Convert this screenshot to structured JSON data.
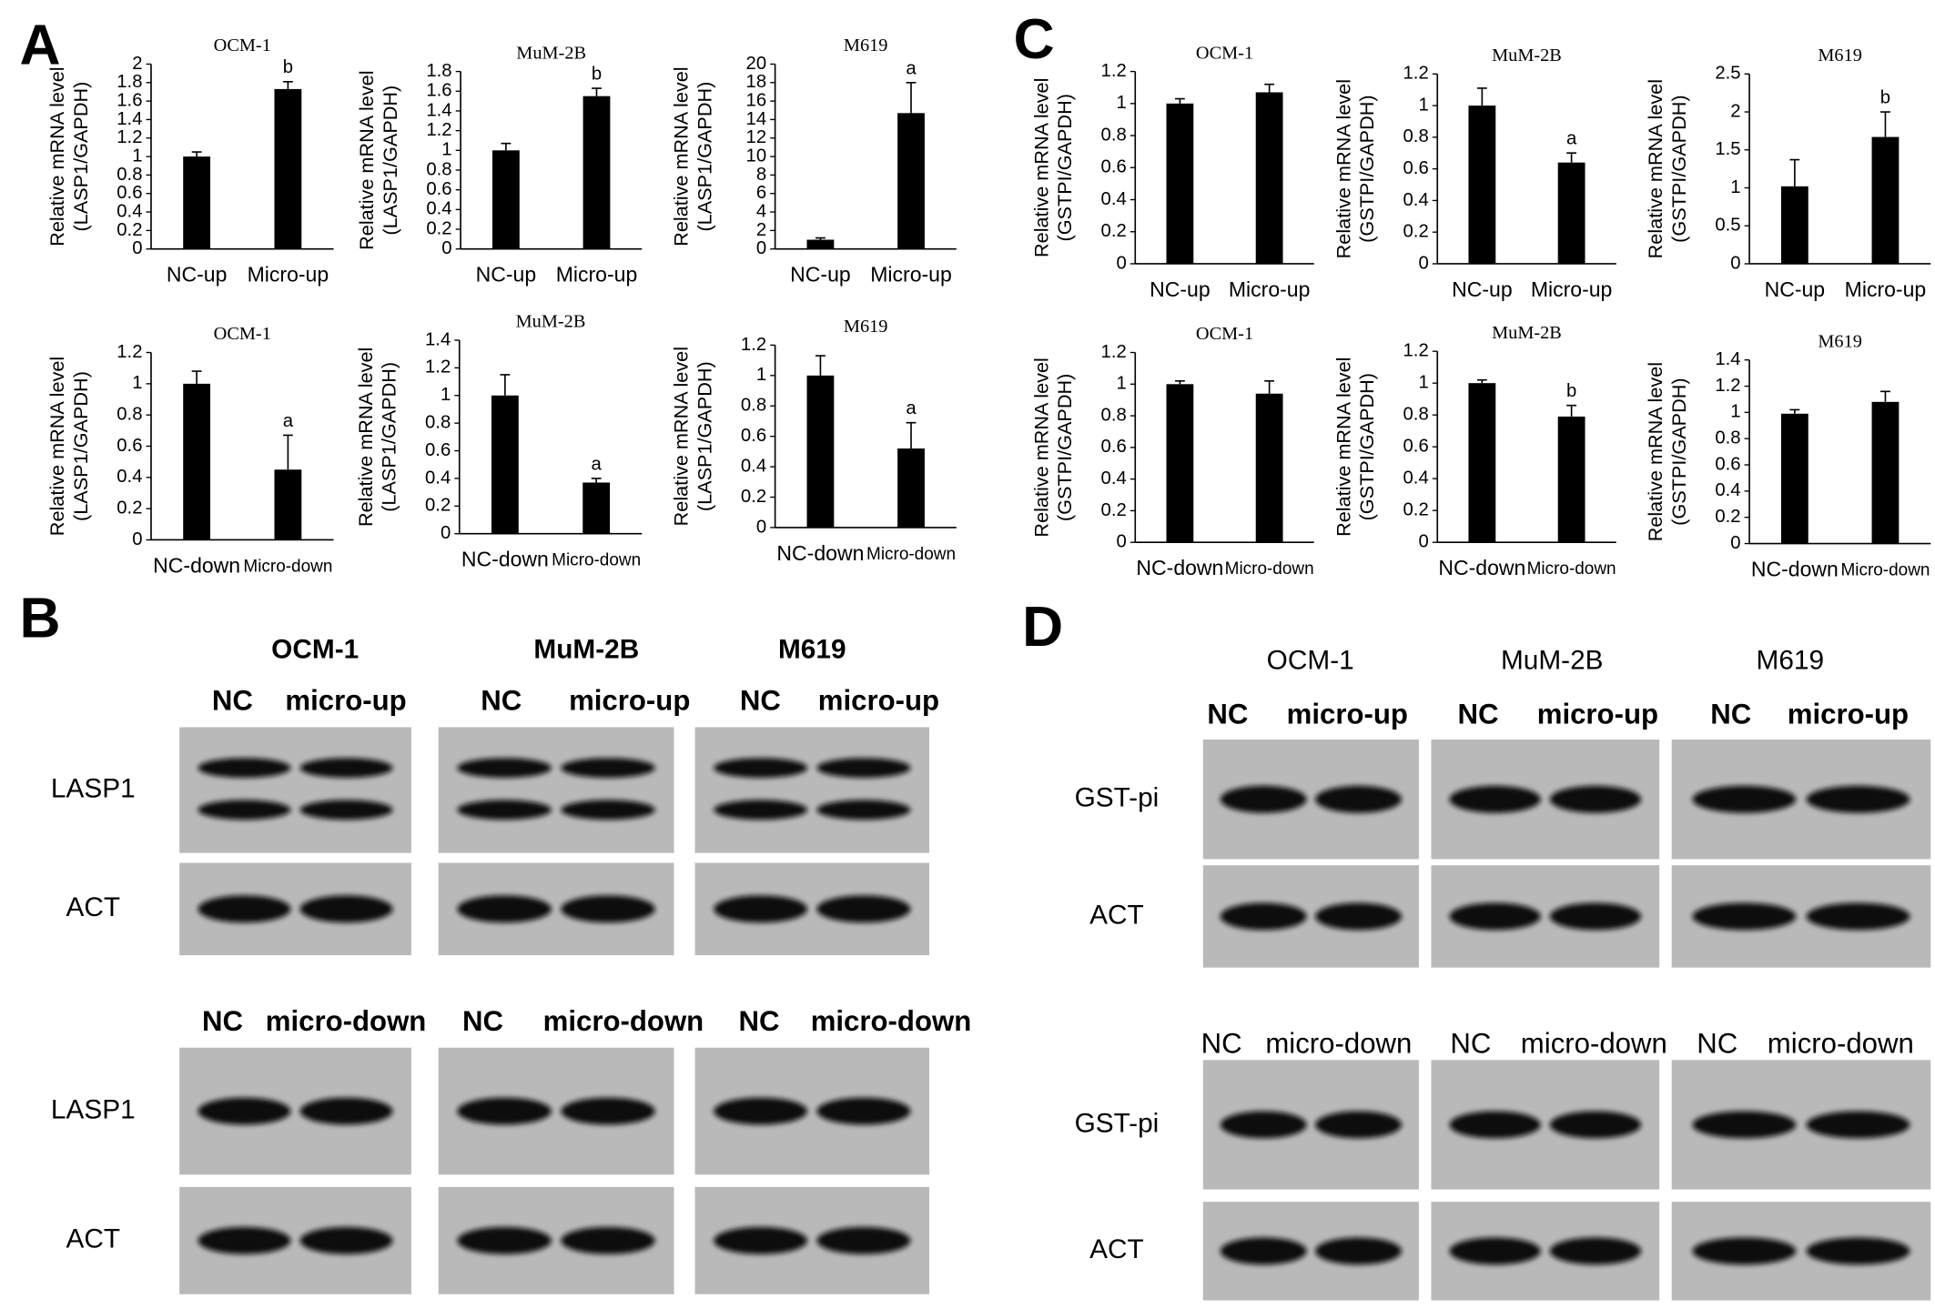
{
  "panel_letters": [
    "A",
    "B",
    "C",
    "D"
  ],
  "chart_data": [
    {
      "type": "bar",
      "title": "OCM-1",
      "ylabel": [
        "Relative mRNA level",
        "(LASP1/GAPDH)"
      ],
      "categories": [
        "NC-up",
        "Micro-up"
      ],
      "values": [
        1.0,
        1.73
      ],
      "errors": [
        0.05,
        0.08
      ],
      "significance": [
        null,
        "b"
      ],
      "color": "#000000",
      "ylim": [
        0,
        2
      ],
      "yticks": [
        0,
        0.2,
        0.4,
        0.6,
        0.8,
        1,
        1.2,
        1.4,
        1.6,
        1.8,
        2
      ]
    },
    {
      "type": "bar",
      "title": "MuM-2B",
      "ylabel": [
        "Relative mRNA level",
        "(LASP1/GAPDH)"
      ],
      "categories": [
        "NC-up",
        "Micro-up"
      ],
      "values": [
        1.0,
        1.55
      ],
      "errors": [
        0.07,
        0.08
      ],
      "significance": [
        null,
        "b"
      ],
      "color": "#000000",
      "ylim": [
        0,
        1.8
      ],
      "yticks": [
        0,
        0.2,
        0.4,
        0.6,
        0.8,
        1,
        1.2,
        1.4,
        1.6,
        1.8
      ]
    },
    {
      "type": "bar",
      "title": "M619",
      "ylabel": [
        "Relative mRNA level",
        "(LASP1/GAPDH)"
      ],
      "categories": [
        "NC-up",
        "Micro-up"
      ],
      "values": [
        1.0,
        14.7
      ],
      "errors": [
        0.2,
        3.3
      ],
      "significance": [
        null,
        "a"
      ],
      "color": "#000000",
      "ylim": [
        0,
        20
      ],
      "yticks": [
        0,
        2,
        4,
        6,
        8,
        10,
        12,
        14,
        16,
        18,
        20
      ]
    },
    {
      "type": "bar",
      "title": "OCM-1",
      "ylabel": [
        "Relative mRNA level",
        "(LASP1/GAPDH)"
      ],
      "categories": [
        "NC-down",
        "Micro-down"
      ],
      "values": [
        1.0,
        0.45
      ],
      "errors": [
        0.08,
        0.22
      ],
      "significance": [
        null,
        "a"
      ],
      "color": "#000000",
      "ylim": [
        0,
        1.2
      ],
      "yticks": [
        0,
        0.2,
        0.4,
        0.6,
        0.8,
        1,
        1.2
      ]
    },
    {
      "type": "bar",
      "title": "MuM-2B",
      "ylabel": [
        "Relative mRNA level",
        "(LASP1/GAPDH)"
      ],
      "categories": [
        "NC-down",
        "Micro-down"
      ],
      "values": [
        1.0,
        0.37
      ],
      "errors": [
        0.15,
        0.03
      ],
      "significance": [
        null,
        "a"
      ],
      "color": "#000000",
      "ylim": [
        0,
        1.4
      ],
      "yticks": [
        0,
        0.2,
        0.4,
        0.6,
        0.8,
        1,
        1.2,
        1.4
      ]
    },
    {
      "type": "bar",
      "title": "M619",
      "ylabel": [
        "Relative mRNA level",
        "(LASP1/GAPDH)"
      ],
      "categories": [
        "NC-down",
        "Micro-down"
      ],
      "values": [
        1.0,
        0.52
      ],
      "errors": [
        0.13,
        0.17
      ],
      "significance": [
        null,
        "a"
      ],
      "color": "#000000",
      "ylim": [
        0,
        1.2
      ],
      "yticks": [
        0,
        0.2,
        0.4,
        0.6,
        0.8,
        1,
        1.2
      ]
    },
    {
      "type": "bar",
      "title": "OCM-1",
      "ylabel": [
        "Relative mRNA level",
        "(GSTPI/GAPDH)"
      ],
      "categories": [
        "NC-up",
        "Micro-up"
      ],
      "values": [
        1.0,
        1.07
      ],
      "errors": [
        0.03,
        0.05
      ],
      "significance": [
        null,
        null
      ],
      "color": "#000000",
      "ylim": [
        0,
        1.2
      ],
      "yticks": [
        0,
        0.2,
        0.4,
        0.6,
        0.8,
        1,
        1.2
      ]
    },
    {
      "type": "bar",
      "title": "MuM-2B",
      "ylabel": [
        "Relative mRNA level",
        "(GSTPI/GAPDH)"
      ],
      "categories": [
        "NC-up",
        "Micro-up"
      ],
      "values": [
        1.0,
        0.64
      ],
      "errors": [
        0.11,
        0.06
      ],
      "significance": [
        null,
        "a"
      ],
      "color": "#000000",
      "ylim": [
        0,
        1.2
      ],
      "yticks": [
        0,
        0.2,
        0.4,
        0.6,
        0.8,
        1,
        1.2
      ]
    },
    {
      "type": "bar",
      "title": "M619",
      "ylabel": [
        "Relative mRNA level",
        "(GSTPI/GAPDH)"
      ],
      "categories": [
        "NC-up",
        "Micro-up"
      ],
      "values": [
        1.02,
        1.67
      ],
      "errors": [
        0.35,
        0.33
      ],
      "significance": [
        null,
        "b"
      ],
      "color": "#000000",
      "ylim": [
        0,
        2.5
      ],
      "yticks": [
        0,
        0.5,
        1,
        1.5,
        2,
        2.5
      ]
    },
    {
      "type": "bar",
      "title": "OCM-1",
      "ylabel": [
        "Relative mRNA level",
        "(GSTPI/GAPDH)"
      ],
      "categories": [
        "NC-down",
        "Micro-down"
      ],
      "values": [
        1.0,
        0.94
      ],
      "errors": [
        0.02,
        0.08
      ],
      "significance": [
        null,
        null
      ],
      "color": "#000000",
      "ylim": [
        0,
        1.2
      ],
      "yticks": [
        0,
        0.2,
        0.4,
        0.6,
        0.8,
        1,
        1.2
      ]
    },
    {
      "type": "bar",
      "title": "MuM-2B",
      "ylabel": [
        "Relative mRNA level",
        "(GSTPI/GAPDH)"
      ],
      "categories": [
        "NC-down",
        "Micro-down"
      ],
      "values": [
        1.0,
        0.79
      ],
      "errors": [
        0.02,
        0.07
      ],
      "significance": [
        null,
        "b"
      ],
      "color": "#000000",
      "ylim": [
        0,
        1.2
      ],
      "yticks": [
        0,
        0.2,
        0.4,
        0.6,
        0.8,
        1,
        1.2
      ]
    },
    {
      "type": "bar",
      "title": "M619",
      "ylabel": [
        "Relative mRNA level",
        "(GSTPI/GAPDH)"
      ],
      "categories": [
        "NC-down",
        "Micro-down"
      ],
      "values": [
        0.99,
        1.08
      ],
      "errors": [
        0.03,
        0.08
      ],
      "significance": [
        null,
        null
      ],
      "color": "#000000",
      "ylim": [
        0,
        1.4
      ],
      "yticks": [
        0,
        0.2,
        0.4,
        0.6,
        0.8,
        1,
        1.2,
        1.4
      ]
    }
  ],
  "blots": [
    {
      "cell_lines": [
        "OCM-1",
        "MuM-2B",
        "M619"
      ],
      "sets": [
        {
          "lanes": [
            "NC",
            "micro-up"
          ],
          "bands": [
            "LASP1",
            "ACT"
          ]
        },
        {
          "lanes": [
            "NC",
            "micro-down"
          ],
          "bands": [
            "LASP1",
            "ACT"
          ]
        }
      ]
    },
    {
      "cell_lines": [
        "OCM-1",
        "MuM-2B",
        "M619"
      ],
      "sets": [
        {
          "lanes": [
            "NC",
            "micro-up"
          ],
          "bands": [
            "GST-pi",
            "ACT"
          ]
        },
        {
          "lanes": [
            "NC",
            "micro-down"
          ],
          "bands": [
            "GST-pi",
            "ACT"
          ]
        }
      ]
    }
  ]
}
